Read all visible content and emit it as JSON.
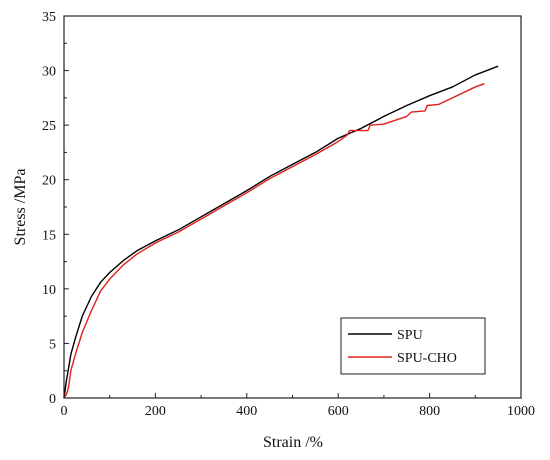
{
  "chart_data": {
    "type": "line",
    "title": "",
    "xlabel": "Strain /%",
    "ylabel": "Stress /MPa",
    "xlim": [
      0,
      1000
    ],
    "ylim": [
      0,
      35
    ],
    "xticks": [
      0,
      200,
      400,
      600,
      800,
      1000
    ],
    "yticks": [
      0,
      5,
      10,
      15,
      20,
      25,
      30,
      35
    ],
    "grid": false,
    "legend_position": "bottom-right",
    "series": [
      {
        "name": "SPU",
        "color": "#000000",
        "points": [
          [
            0,
            0
          ],
          [
            5,
            1.5
          ],
          [
            15,
            4
          ],
          [
            25,
            5.5
          ],
          [
            40,
            7.5
          ],
          [
            60,
            9.3
          ],
          [
            80,
            10.6
          ],
          [
            100,
            11.5
          ],
          [
            130,
            12.6
          ],
          [
            160,
            13.5
          ],
          [
            200,
            14.4
          ],
          [
            250,
            15.4
          ],
          [
            300,
            16.6
          ],
          [
            350,
            17.8
          ],
          [
            400,
            19.0
          ],
          [
            450,
            20.3
          ],
          [
            500,
            21.4
          ],
          [
            550,
            22.5
          ],
          [
            600,
            23.8
          ],
          [
            650,
            24.7
          ],
          [
            700,
            25.8
          ],
          [
            750,
            26.8
          ],
          [
            800,
            27.7
          ],
          [
            850,
            28.5
          ],
          [
            900,
            29.6
          ],
          [
            950,
            30.4
          ]
        ]
      },
      {
        "name": "SPU-CHO",
        "color": "#e0201b",
        "points": [
          [
            0,
            0
          ],
          [
            5,
            0.3
          ],
          [
            10,
            1.0
          ],
          [
            15,
            2.5
          ],
          [
            25,
            4.0
          ],
          [
            40,
            6.0
          ],
          [
            60,
            8.0
          ],
          [
            80,
            9.8
          ],
          [
            100,
            10.9
          ],
          [
            130,
            12.2
          ],
          [
            160,
            13.2
          ],
          [
            200,
            14.2
          ],
          [
            250,
            15.2
          ],
          [
            300,
            16.4
          ],
          [
            350,
            17.6
          ],
          [
            400,
            18.8
          ],
          [
            450,
            20.1
          ],
          [
            500,
            21.2
          ],
          [
            550,
            22.3
          ],
          [
            600,
            23.5
          ],
          [
            620,
            24.1
          ],
          [
            625,
            24.5
          ],
          [
            665,
            24.5
          ],
          [
            670,
            25.0
          ],
          [
            700,
            25.1
          ],
          [
            750,
            25.8
          ],
          [
            760,
            26.2
          ],
          [
            790,
            26.3
          ],
          [
            795,
            26.8
          ],
          [
            820,
            26.9
          ],
          [
            850,
            27.5
          ],
          [
            880,
            28.1
          ],
          [
            900,
            28.5
          ],
          [
            920,
            28.8
          ]
        ]
      }
    ]
  }
}
